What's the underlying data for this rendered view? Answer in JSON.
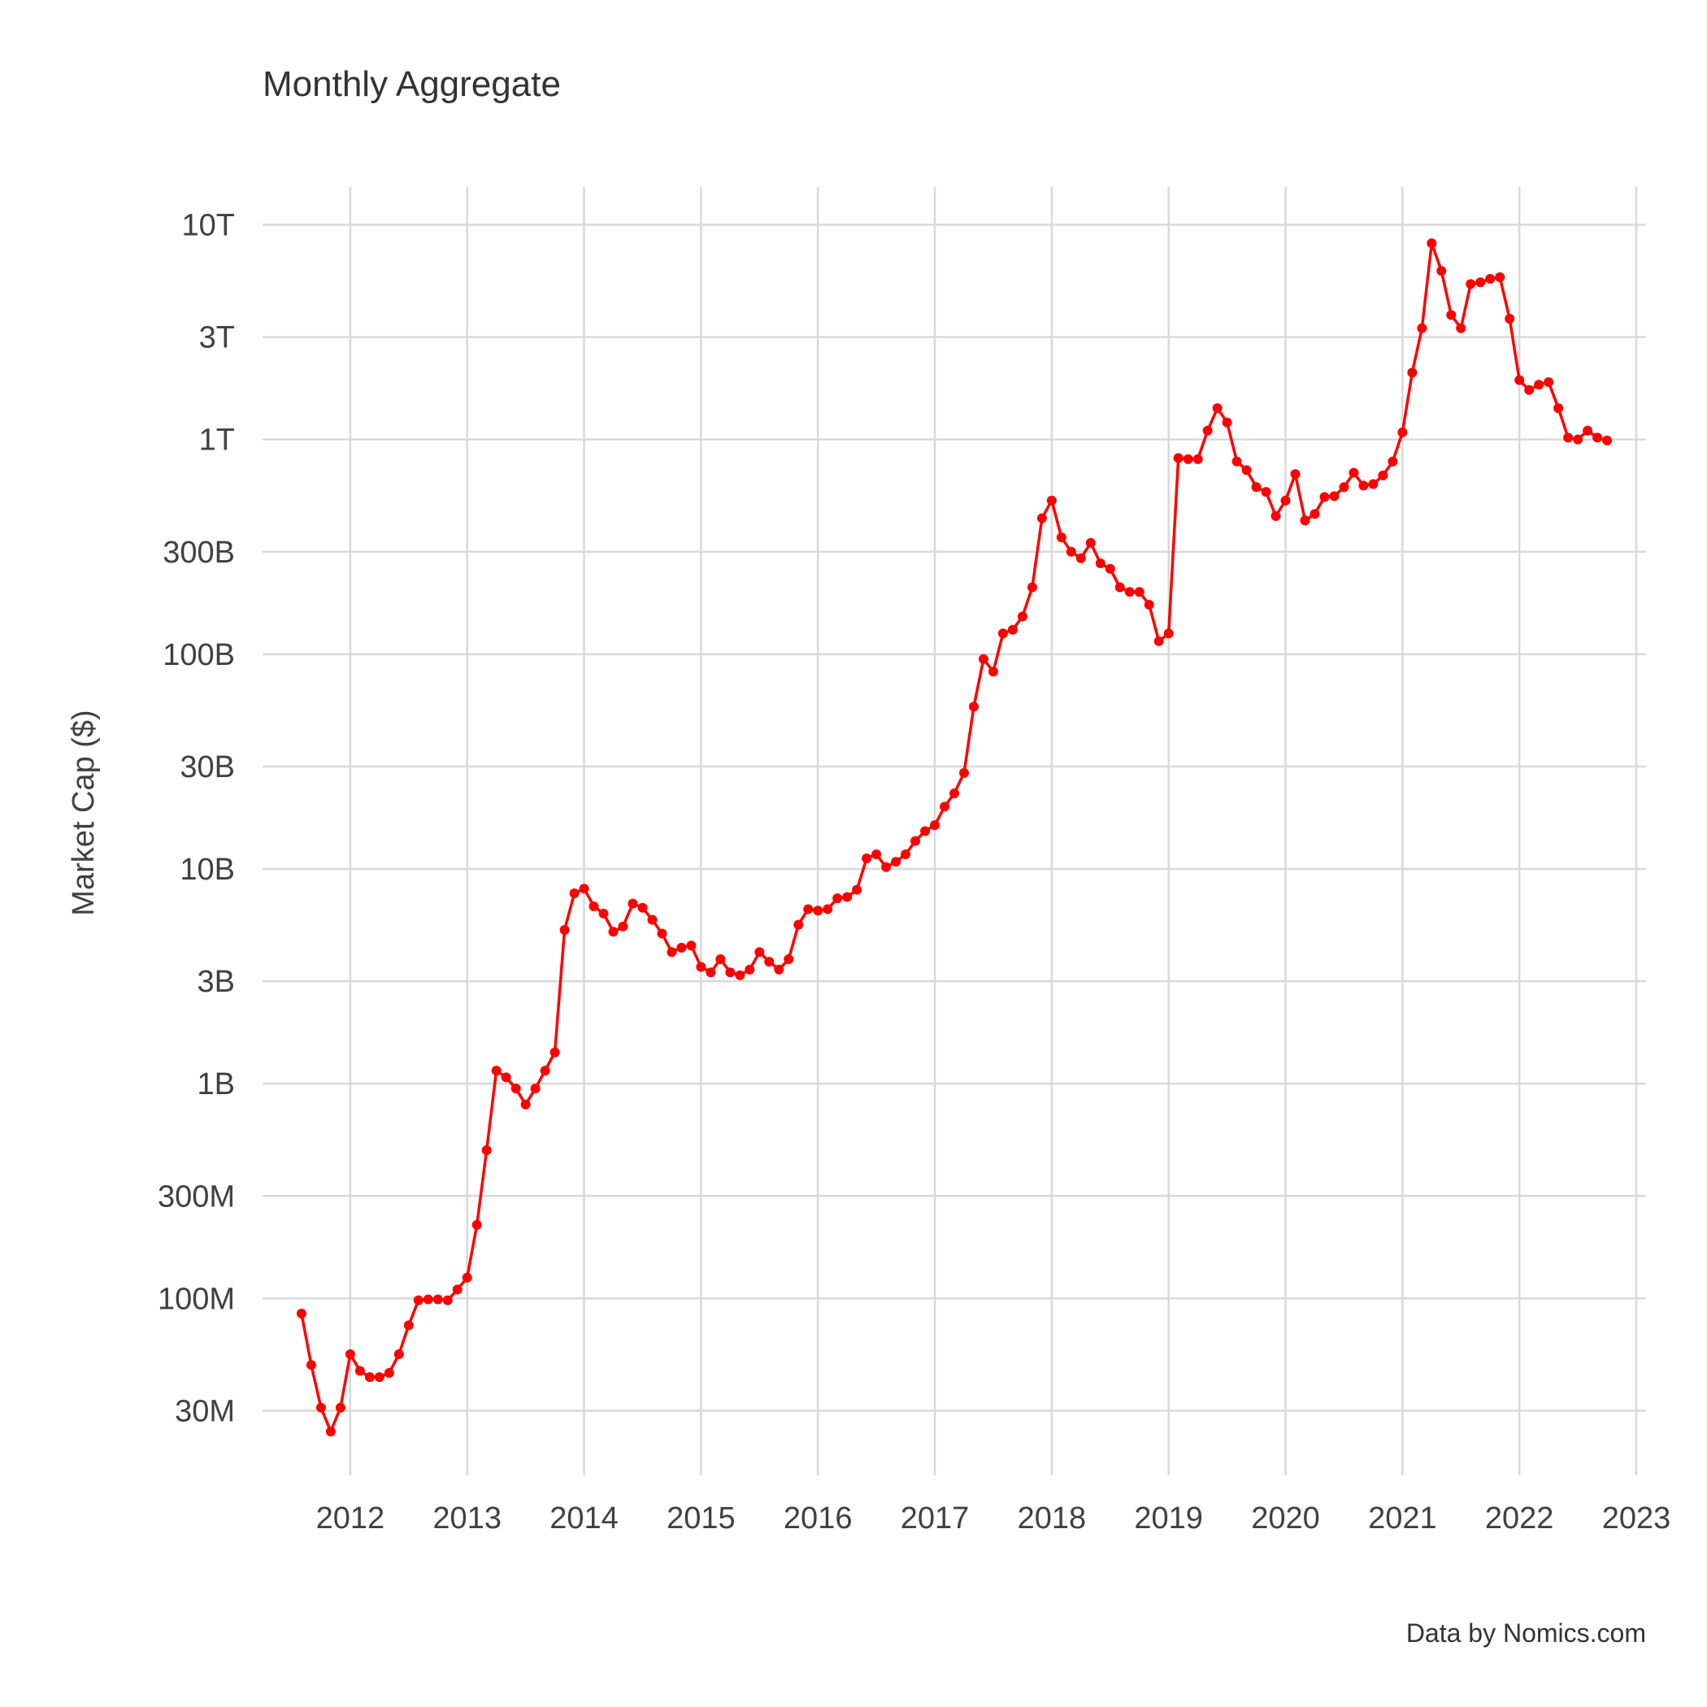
{
  "chart_data": {
    "type": "line",
    "title": "Monthly Aggregate",
    "xlabel": "",
    "ylabel": "Market Cap ($)",
    "caption": "Data by Nomics.com",
    "y_scale": "log",
    "xlim": [
      "2011-04",
      "2023-02"
    ],
    "ylim": [
      15000000,
      15000000000000
    ],
    "x_ticks": [
      "2012",
      "2013",
      "2014",
      "2015",
      "2016",
      "2017",
      "2018",
      "2019",
      "2020",
      "2021",
      "2022",
      "2023"
    ],
    "y_ticks": [
      {
        "label": "30M",
        "value": 30000000
      },
      {
        "label": "100M",
        "value": 100000000
      },
      {
        "label": "300M",
        "value": 300000000
      },
      {
        "label": "1B",
        "value": 1000000000
      },
      {
        "label": "3B",
        "value": 3000000000
      },
      {
        "label": "10B",
        "value": 10000000000
      },
      {
        "label": "30B",
        "value": 30000000000
      },
      {
        "label": "100B",
        "value": 100000000000
      },
      {
        "label": "300B",
        "value": 300000000000
      },
      {
        "label": "1T",
        "value": 1000000000000
      },
      {
        "label": "3T",
        "value": 3000000000000
      },
      {
        "label": "10T",
        "value": 10000000000000
      }
    ],
    "grid": true,
    "legend": "none",
    "line_color": "#ff0000",
    "series": [
      {
        "x": [
          "2011-08",
          "2011-09",
          "2011-10",
          "2011-11",
          "2011-12",
          "2012-01",
          "2012-02",
          "2012-03",
          "2012-04",
          "2012-05",
          "2012-06",
          "2012-07",
          "2012-08",
          "2012-09",
          "2012-10",
          "2012-11",
          "2012-12",
          "2013-01",
          "2013-02",
          "2013-03",
          "2013-04",
          "2013-05",
          "2013-06",
          "2013-07",
          "2013-08",
          "2013-09",
          "2013-10",
          "2013-11",
          "2013-12",
          "2014-01",
          "2014-02",
          "2014-03",
          "2014-04",
          "2014-05",
          "2014-06",
          "2014-07",
          "2014-08",
          "2014-09",
          "2014-10",
          "2014-11",
          "2014-12",
          "2015-01",
          "2015-02",
          "2015-03",
          "2015-04",
          "2015-05",
          "2015-06",
          "2015-07",
          "2015-08",
          "2015-09",
          "2015-10",
          "2015-11",
          "2015-12",
          "2016-01",
          "2016-02",
          "2016-03",
          "2016-04",
          "2016-05",
          "2016-06",
          "2016-07",
          "2016-08",
          "2016-09",
          "2016-10",
          "2016-11",
          "2016-12",
          "2017-01",
          "2017-02",
          "2017-03",
          "2017-04",
          "2017-05",
          "2017-06",
          "2017-07",
          "2017-08",
          "2017-09",
          "2017-10",
          "2017-11",
          "2017-12",
          "2018-01",
          "2018-02",
          "2018-03",
          "2018-04",
          "2018-05",
          "2018-06",
          "2018-07",
          "2018-08",
          "2018-09",
          "2018-10",
          "2018-11",
          "2018-12",
          "2019-01",
          "2019-02",
          "2019-03",
          "2019-04",
          "2019-05",
          "2019-06",
          "2019-07",
          "2019-08",
          "2019-09",
          "2019-10",
          "2019-11",
          "2019-12",
          "2020-01",
          "2020-02",
          "2020-03",
          "2020-04",
          "2020-05",
          "2020-06",
          "2020-07",
          "2020-08",
          "2020-09",
          "2020-10",
          "2020-11",
          "2020-12",
          "2021-01",
          "2021-02",
          "2021-03",
          "2021-04",
          "2021-05",
          "2021-06",
          "2021-07",
          "2021-08",
          "2021-09",
          "2021-10",
          "2021-11",
          "2021-12",
          "2022-01",
          "2022-02",
          "2022-03",
          "2022-04",
          "2022-05",
          "2022-06",
          "2022-07",
          "2022-08",
          "2022-09",
          "2022-10"
        ],
        "values": [
          85000000,
          49000000,
          31000000,
          24000000,
          31000000,
          55000000,
          46000000,
          43000000,
          43000000,
          45000000,
          55000000,
          75000000,
          98000000,
          99000000,
          99000000,
          98000000,
          110000000,
          125000000,
          220000000,
          490000000,
          1150000000,
          1070000000,
          950000000,
          800000000,
          950000000,
          1150000000,
          1400000000,
          5200000000,
          7700000000,
          8100000000,
          6700000000,
          6200000000,
          5100000000,
          5400000000,
          6900000000,
          6600000000,
          5800000000,
          5000000000,
          4100000000,
          4300000000,
          4400000000,
          3500000000,
          3300000000,
          3800000000,
          3300000000,
          3200000000,
          3400000000,
          4100000000,
          3700000000,
          3400000000,
          3800000000,
          5500000000,
          6500000000,
          6400000000,
          6500000000,
          7300000000,
          7400000000,
          8000000000,
          11200000000,
          11700000000,
          10200000000,
          10800000000,
          11700000000,
          13500000000,
          15000000000,
          16000000000,
          19500000000,
          22500000000,
          28000000000,
          57000000000,
          95000000000,
          83000000000,
          125000000000,
          130000000000,
          150000000000,
          205000000000,
          430000000000,
          520000000000,
          350000000000,
          300000000000,
          280000000000,
          330000000000,
          265000000000,
          250000000000,
          205000000000,
          195000000000,
          195000000000,
          170000000000,
          115000000000,
          125000000000,
          820000000000,
          810000000000,
          810000000000,
          1100000000000,
          1400000000000,
          1200000000000,
          790000000000,
          720000000000,
          600000000000,
          570000000000,
          440000000000,
          520000000000,
          690000000000,
          420000000000,
          450000000000,
          540000000000,
          545000000000,
          600000000000,
          700000000000,
          610000000000,
          620000000000,
          680000000000,
          790000000000,
          1080000000000,
          2050000000000,
          3300000000000,
          8200000000000,
          6100000000000,
          3800000000000,
          3300000000000,
          5300000000000,
          5400000000000,
          5600000000000,
          5700000000000,
          3650000000000,
          1890000000000,
          1700000000000,
          1800000000000,
          1850000000000,
          1400000000000,
          1020000000000,
          1000000000000,
          1100000000000,
          1020000000000,
          990000000000
        ]
      }
    ]
  }
}
